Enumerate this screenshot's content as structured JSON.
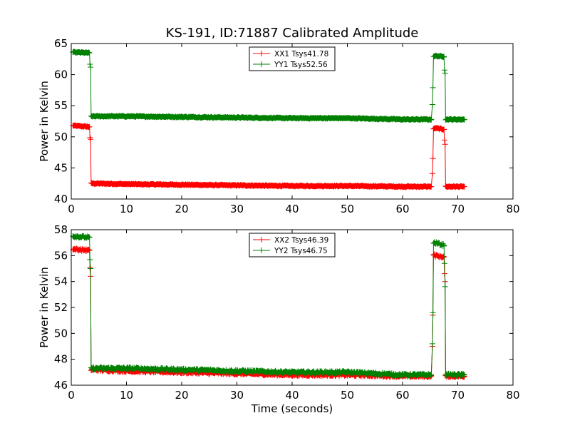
{
  "chart_data": [
    {
      "type": "line",
      "title": "KS-191, ID:71887 Calibrated Amplitude",
      "xlabel": "",
      "ylabel": "Power in Kelvin",
      "xlim": [
        0,
        80
      ],
      "ylim": [
        40,
        65
      ],
      "xticks": [
        0,
        10,
        20,
        30,
        40,
        50,
        60,
        70,
        80
      ],
      "xtick_labels": [
        "0",
        "10",
        "20",
        "30",
        "40",
        "50",
        "60",
        "70",
        "80"
      ],
      "yticks": [
        40,
        45,
        50,
        55,
        60,
        65
      ],
      "ytick_labels": [
        "40",
        "45",
        "50",
        "55",
        "60",
        "65"
      ],
      "legend_position": "top-center",
      "series": [
        {
          "name": "XX1 Tsys41.78",
          "color": "#ff0000",
          "x": [
            0.3,
            3.3,
            3.4,
            3.5,
            3.6,
            3.8,
            10,
            20,
            30,
            40,
            50,
            60,
            65.2,
            65.4,
            65.5,
            65.6,
            65.8,
            67.5,
            67.6,
            67.7,
            67.8,
            68.0,
            71.2
          ],
          "y": [
            51.8,
            51.6,
            49.9,
            49.6,
            42.5,
            42.5,
            42.4,
            42.3,
            42.2,
            42.1,
            42.1,
            42.0,
            42.0,
            44.1,
            46.5,
            51.2,
            51.4,
            51.2,
            49.5,
            48.8,
            42.0,
            42.0,
            42.0
          ]
        },
        {
          "name": "YY1 Tsys52.56",
          "color": "#008000",
          "x": [
            0.3,
            3.3,
            3.4,
            3.5,
            3.6,
            3.8,
            10,
            20,
            30,
            40,
            50,
            60,
            65.2,
            65.4,
            65.5,
            65.6,
            65.8,
            67.5,
            67.6,
            67.7,
            67.8,
            68.0,
            71.2
          ],
          "y": [
            63.6,
            63.5,
            61.6,
            61.2,
            53.3,
            53.3,
            53.3,
            53.2,
            53.1,
            53.0,
            53.0,
            52.8,
            52.8,
            55.2,
            57.9,
            62.9,
            63.0,
            62.9,
            60.8,
            60.2,
            52.8,
            52.8,
            52.8
          ]
        }
      ]
    },
    {
      "type": "line",
      "title": "",
      "xlabel": "Time (seconds)",
      "ylabel": "Power in Kelvin",
      "xlim": [
        0,
        80
      ],
      "ylim": [
        46,
        58
      ],
      "xticks": [
        0,
        10,
        20,
        30,
        40,
        50,
        60,
        70,
        80
      ],
      "xtick_labels": [
        "0",
        "10",
        "20",
        "30",
        "40",
        "50",
        "60",
        "70",
        "80"
      ],
      "yticks": [
        46,
        48,
        50,
        52,
        54,
        56,
        58
      ],
      "ytick_labels": [
        "46",
        "48",
        "50",
        "52",
        "54",
        "56",
        "58"
      ],
      "legend_position": "top-center",
      "series": [
        {
          "name": "XX2 Tsys46.39",
          "color": "#ff0000",
          "x": [
            0.3,
            3.3,
            3.4,
            3.5,
            3.6,
            3.8,
            10,
            20,
            30,
            40,
            50,
            60,
            65.2,
            65.4,
            65.5,
            65.6,
            65.8,
            67.5,
            67.6,
            67.7,
            67.8,
            68.0,
            71.2
          ],
          "y": [
            56.5,
            56.4,
            55.0,
            54.4,
            47.2,
            47.2,
            47.1,
            47.0,
            46.9,
            46.8,
            46.8,
            46.7,
            46.7,
            49.0,
            51.4,
            56.1,
            56.0,
            55.9,
            54.6,
            54.0,
            46.7,
            46.7,
            46.7
          ]
        },
        {
          "name": "YY2 Tsys46.75",
          "color": "#008000",
          "x": [
            0.3,
            3.3,
            3.4,
            3.5,
            3.6,
            3.8,
            10,
            20,
            30,
            40,
            50,
            60,
            65.2,
            65.4,
            65.5,
            65.6,
            65.8,
            67.5,
            67.6,
            67.7,
            67.8,
            68.0,
            71.2
          ],
          "y": [
            57.5,
            57.4,
            55.6,
            55.0,
            47.3,
            47.3,
            47.3,
            47.2,
            47.1,
            47.0,
            47.0,
            46.8,
            46.8,
            49.2,
            51.6,
            56.9,
            57.0,
            56.8,
            55.4,
            53.6,
            46.8,
            46.8,
            46.8
          ]
        }
      ]
    }
  ]
}
